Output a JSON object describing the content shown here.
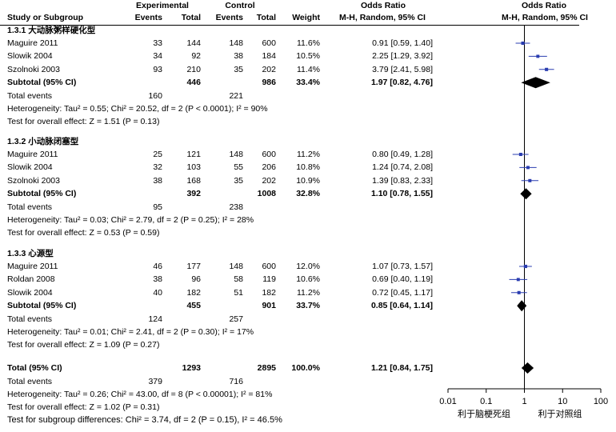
{
  "header": {
    "experimental": "Experimental",
    "control": "Control",
    "or_left": "Odds Ratio",
    "or_right": "Odds Ratio",
    "col_study": "Study or Subgroup",
    "col_events_e": "Events",
    "col_total_e": "Total",
    "col_events_c": "Events",
    "col_total_c": "Total",
    "col_weight": "Weight",
    "col_method_left": "M-H, Random, 95% CI",
    "col_method_right": "M-H, Random, 95% CI"
  },
  "subgroups": [
    {
      "title": "1.3.1 大动脉粥样硬化型",
      "studies": [
        {
          "name": "Maguire 2011",
          "e_events": "33",
          "e_total": "144",
          "c_events": "148",
          "c_total": "600",
          "weight": "11.6%",
          "ci": "0.91 [0.59, 1.40]"
        },
        {
          "name": "Slowik 2004",
          "e_events": "34",
          "e_total": "92",
          "c_events": "38",
          "c_total": "184",
          "weight": "10.5%",
          "ci": "2.25 [1.29, 3.92]"
        },
        {
          "name": "Szolnoki 2003",
          "e_events": "93",
          "e_total": "210",
          "c_events": "35",
          "c_total": "202",
          "weight": "11.4%",
          "ci": "3.79 [2.41, 5.98]"
        }
      ],
      "subtotal": {
        "label": "Subtotal (95% CI)",
        "e_total": "446",
        "c_total": "986",
        "weight": "33.4%",
        "ci": "1.97 [0.82, 4.76]"
      },
      "total_events": {
        "label": "Total events",
        "e": "160",
        "c": "221"
      },
      "heterogeneity": "Heterogeneity: Tau² = 0.55; Chi² = 20.52, df = 2 (P < 0.0001); I² = 90%",
      "overall": "Test for overall effect: Z = 1.51 (P = 0.13)"
    },
    {
      "title": "1.3.2 小动脉闭塞型",
      "studies": [
        {
          "name": "Maguire 2011",
          "e_events": "25",
          "e_total": "121",
          "c_events": "148",
          "c_total": "600",
          "weight": "11.2%",
          "ci": "0.80 [0.49, 1.28]"
        },
        {
          "name": "Slowik 2004",
          "e_events": "32",
          "e_total": "103",
          "c_events": "55",
          "c_total": "206",
          "weight": "10.8%",
          "ci": "1.24 [0.74, 2.08]"
        },
        {
          "name": "Szolnoki 2003",
          "e_events": "38",
          "e_total": "168",
          "c_events": "35",
          "c_total": "202",
          "weight": "10.9%",
          "ci": "1.39 [0.83, 2.33]"
        }
      ],
      "subtotal": {
        "label": "Subtotal (95% CI)",
        "e_total": "392",
        "c_total": "1008",
        "weight": "32.8%",
        "ci": "1.10 [0.78, 1.55]"
      },
      "total_events": {
        "label": "Total events",
        "e": "95",
        "c": "238"
      },
      "heterogeneity": "Heterogeneity: Tau² = 0.03; Chi² = 2.79, df = 2 (P = 0.25); I² = 28%",
      "overall": "Test for overall effect: Z = 0.53 (P = 0.59)"
    },
    {
      "title": "1.3.3 心源型",
      "studies": [
        {
          "name": "Maguire 2011",
          "e_events": "46",
          "e_total": "177",
          "c_events": "148",
          "c_total": "600",
          "weight": "12.0%",
          "ci": "1.07 [0.73, 1.57]"
        },
        {
          "name": "Roldan 2008",
          "e_events": "38",
          "e_total": "96",
          "c_events": "58",
          "c_total": "119",
          "weight": "10.6%",
          "ci": "0.69 [0.40, 1.19]"
        },
        {
          "name": "Slowik 2004",
          "e_events": "40",
          "e_total": "182",
          "c_events": "51",
          "c_total": "182",
          "weight": "11.2%",
          "ci": "0.72 [0.45, 1.17]"
        }
      ],
      "subtotal": {
        "label": "Subtotal (95% CI)",
        "e_total": "455",
        "c_total": "901",
        "weight": "33.7%",
        "ci": "0.85 [0.64, 1.14]"
      },
      "total_events": {
        "label": "Total events",
        "e": "124",
        "c": "257"
      },
      "heterogeneity": "Heterogeneity: Tau² = 0.01; Chi² = 2.41, df = 2 (P = 0.30); I² = 17%",
      "overall": "Test for overall effect: Z = 1.09 (P = 0.27)"
    }
  ],
  "total": {
    "label": "Total (95% CI)",
    "e_total": "1293",
    "c_total": "2895",
    "weight": "100.0%",
    "ci": "1.21 [0.84, 1.75]",
    "events_label": "Total events",
    "e_events": "379",
    "c_events": "716",
    "heterogeneity": "Heterogeneity: Tau² = 0.26; Chi² = 43.00, df = 8 (P < 0.00001); I² = 81%",
    "overall": "Test for overall effect: Z = 1.02 (P = 0.31)",
    "subgroup_diff": "Test for subgroup differences: Chi² = 3.74, df = 2 (P = 0.15), I² = 46.5%"
  },
  "axis": {
    "ticks": [
      "0.01",
      "0.1",
      "1",
      "10",
      "100"
    ],
    "favours_left": "利于脑梗死组",
    "favours_right": "利于对照组"
  },
  "colors": {
    "study_marker": "#2a3db0",
    "ci_line": "#2a3db0",
    "diamond": "#000000",
    "axis": "#000000"
  },
  "chart_data": {
    "type": "forest",
    "scale": "log",
    "xlim": [
      0.01,
      100
    ],
    "reference_line": 1,
    "groups": [
      {
        "name": "1.3.1 大动脉粥样硬化型",
        "points": [
          {
            "label": "Maguire 2011",
            "or": 0.91,
            "lo": 0.59,
            "hi": 1.4,
            "weight": 11.6
          },
          {
            "label": "Slowik 2004",
            "or": 2.25,
            "lo": 1.29,
            "hi": 3.92,
            "weight": 10.5
          },
          {
            "label": "Szolnoki 2003",
            "or": 3.79,
            "lo": 2.41,
            "hi": 5.98,
            "weight": 11.4
          }
        ],
        "pooled": {
          "or": 1.97,
          "lo": 0.82,
          "hi": 4.76
        }
      },
      {
        "name": "1.3.2 小动脉闭塞型",
        "points": [
          {
            "label": "Maguire 2011",
            "or": 0.8,
            "lo": 0.49,
            "hi": 1.28,
            "weight": 11.2
          },
          {
            "label": "Slowik 2004",
            "or": 1.24,
            "lo": 0.74,
            "hi": 2.08,
            "weight": 10.8
          },
          {
            "label": "Szolnoki 2003",
            "or": 1.39,
            "lo": 0.83,
            "hi": 2.33,
            "weight": 10.9
          }
        ],
        "pooled": {
          "or": 1.1,
          "lo": 0.78,
          "hi": 1.55
        }
      },
      {
        "name": "1.3.3 心源型",
        "points": [
          {
            "label": "Maguire 2011",
            "or": 1.07,
            "lo": 0.73,
            "hi": 1.57,
            "weight": 12.0
          },
          {
            "label": "Roldan 2008",
            "or": 0.69,
            "lo": 0.4,
            "hi": 1.19,
            "weight": 10.6
          },
          {
            "label": "Slowik 2004",
            "or": 0.72,
            "lo": 0.45,
            "hi": 1.17,
            "weight": 11.2
          }
        ],
        "pooled": {
          "or": 0.85,
          "lo": 0.64,
          "hi": 1.14
        }
      }
    ],
    "overall": {
      "or": 1.21,
      "lo": 0.84,
      "hi": 1.75
    }
  }
}
